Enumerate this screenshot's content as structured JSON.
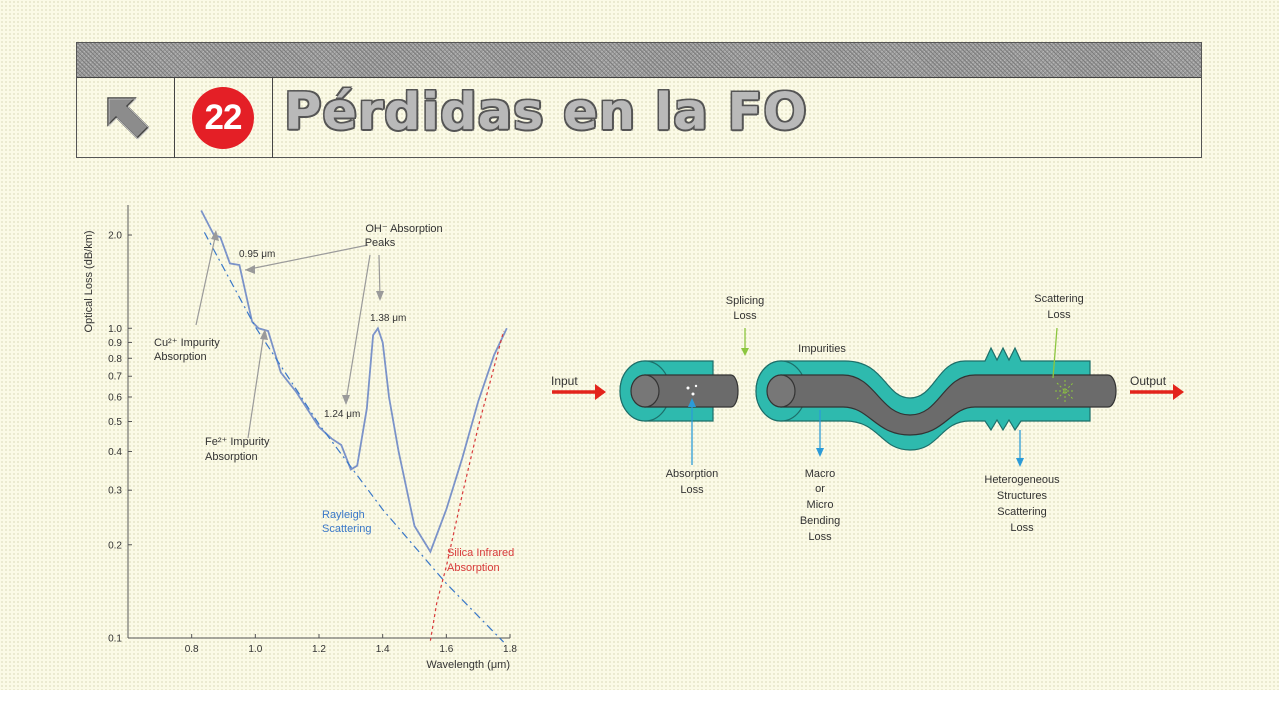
{
  "header": {
    "slide_number": "22",
    "title": "Pérdidas en la FO",
    "back_icon": "arrow-up-left-icon"
  },
  "chart_data": {
    "type": "line",
    "xlabel": "Wavelength (μm)",
    "ylabel": "Optical Loss (dB/km)",
    "xlim": [
      0.6,
      1.8
    ],
    "ylim": [
      0.1,
      2.5
    ],
    "yscale": "log",
    "x_ticks": [
      "0.8",
      "1.0",
      "1.2",
      "1.4",
      "1.6",
      "1.8"
    ],
    "x_tick_values": [
      0.8,
      1.0,
      1.2,
      1.4,
      1.6,
      1.8
    ],
    "y_ticks": [
      "0.1",
      "0.2",
      "0.3",
      "0.4",
      "0.5",
      "0.6",
      "0.7",
      "0.8",
      "0.9",
      "1.0",
      "2.0"
    ],
    "y_tick_values": [
      0.1,
      0.2,
      0.3,
      0.4,
      0.5,
      0.6,
      0.7,
      0.8,
      0.9,
      1.0,
      2.0
    ],
    "grid": false,
    "legend": "none",
    "series": [
      {
        "color": "#7b93c9",
        "points": [
          [
            0.83,
            2.4
          ],
          [
            0.87,
            2.0
          ],
          [
            0.89,
            1.97
          ],
          [
            0.92,
            1.62
          ],
          [
            0.95,
            1.6
          ],
          [
            0.99,
            1.05
          ],
          [
            1.01,
            1.0
          ],
          [
            1.04,
            0.98
          ],
          [
            1.08,
            0.72
          ],
          [
            1.13,
            0.62
          ],
          [
            1.2,
            0.48
          ],
          [
            1.24,
            0.44
          ],
          [
            1.27,
            0.42
          ],
          [
            1.3,
            0.35
          ],
          [
            1.32,
            0.36
          ],
          [
            1.35,
            0.55
          ],
          [
            1.37,
            0.95
          ],
          [
            1.385,
            1.0
          ],
          [
            1.4,
            0.9
          ],
          [
            1.42,
            0.6
          ],
          [
            1.45,
            0.4
          ],
          [
            1.5,
            0.23
          ],
          [
            1.55,
            0.19
          ],
          [
            1.6,
            0.26
          ],
          [
            1.65,
            0.38
          ],
          [
            1.7,
            0.58
          ],
          [
            1.75,
            0.82
          ],
          [
            1.79,
            1.0
          ]
        ]
      },
      {
        "name": "Rayleigh Scattering",
        "color": "#3a78c8",
        "dash": "8 4 2 4",
        "points": [
          [
            0.84,
            2.04
          ],
          [
            1.0,
            1.01
          ],
          [
            1.2,
            0.49
          ],
          [
            1.4,
            0.26
          ],
          [
            1.6,
            0.15
          ],
          [
            1.78,
            0.097
          ]
        ]
      },
      {
        "name": "Silica Infrared Absorption",
        "color": "#d83a3a",
        "dash": "3 3",
        "points": [
          [
            1.55,
            0.098
          ],
          [
            1.57,
            0.13
          ],
          [
            1.6,
            0.17
          ],
          [
            1.65,
            0.29
          ],
          [
            1.7,
            0.48
          ],
          [
            1.75,
            0.75
          ],
          [
            1.78,
            0.98
          ]
        ]
      }
    ],
    "annotations": {
      "oh_peaks": [
        "OH⁻ Absorption",
        "Peaks"
      ],
      "wl_095": "0.95 μm",
      "wl_138": "1.38 μm",
      "wl_124": "1.24 μm",
      "cu": [
        "Cu²⁺ Impurity",
        "Absorption"
      ],
      "fe": [
        "Fe²⁺ Impurity",
        "Absorption"
      ],
      "rayleigh": [
        "Rayleigh",
        "Scattering"
      ],
      "silica": [
        "Silica Infrared",
        "Absorption"
      ]
    }
  },
  "diagram": {
    "input": "Input",
    "output": "Output",
    "splicing": [
      "Splicing",
      "Loss"
    ],
    "scattering": [
      "Scattering",
      "Loss"
    ],
    "impurities": "Impurities",
    "absorption": [
      "Absorption",
      "Loss"
    ],
    "bending": [
      "Macro",
      "or",
      "Micro",
      "Bending",
      "Loss"
    ],
    "heterogeneous": [
      "Heterogeneous",
      "Structures",
      "Scattering",
      "Loss"
    ],
    "colors": {
      "cladding": "#2ebaae",
      "core": "#6b6b6b",
      "arrow": "#e3241b",
      "pointer_blue": "#2b9bd8",
      "pointer_green": "#8cc63f"
    }
  }
}
